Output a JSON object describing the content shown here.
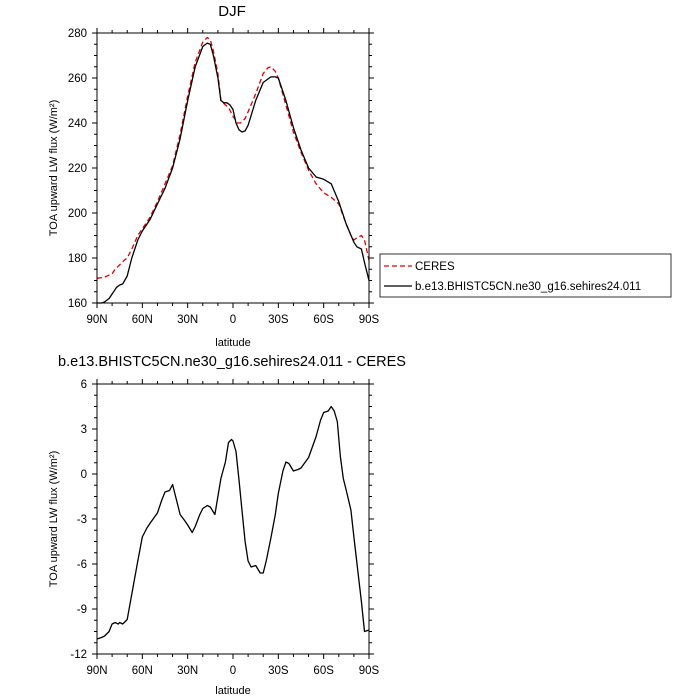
{
  "chart_data": [
    {
      "type": "line",
      "title": "DJF",
      "xlabel": "latitude",
      "ylabel": "TOA upward LW flux (W/m²)",
      "xlim": [
        90,
        -90
      ],
      "ylim": [
        160,
        280
      ],
      "x_ticks": [
        90,
        60,
        30,
        0,
        -30,
        -60,
        -90
      ],
      "x_tick_labels": [
        "90N",
        "60N",
        "30N",
        "0",
        "30S",
        "60S",
        "90S"
      ],
      "y_ticks": [
        160,
        180,
        200,
        220,
        240,
        260,
        280
      ],
      "y_tick_labels": [
        "160",
        "180",
        "200",
        "220",
        "240",
        "260",
        "280"
      ],
      "legend": {
        "placement": "outside-right"
      },
      "series": [
        {
          "name": "CERES",
          "color": "#e00000",
          "style": "dashed",
          "x": [
            90,
            85,
            80,
            78,
            75,
            72,
            70,
            67,
            63,
            60,
            55,
            50,
            45,
            40,
            35,
            30,
            25,
            20,
            17,
            15,
            13,
            10,
            8,
            5,
            3,
            0,
            -3,
            -5,
            -8,
            -10,
            -15,
            -20,
            -23,
            -25,
            -28,
            -30,
            -35,
            -40,
            -45,
            -50,
            -55,
            -60,
            -65,
            -70,
            -75,
            -78,
            -80,
            -82,
            -85,
            -87,
            -90
          ],
          "y": [
            171,
            171.5,
            173,
            175,
            177,
            179,
            180,
            184,
            190,
            193,
            198,
            205,
            213,
            221,
            235,
            252,
            267,
            276,
            278,
            277,
            272,
            262,
            250,
            248,
            247,
            243,
            240,
            240,
            242,
            245,
            253,
            262,
            264.5,
            265,
            263,
            260,
            248,
            236,
            227,
            219,
            213,
            209,
            207,
            204,
            195,
            190,
            188,
            189,
            190,
            188,
            179
          ]
        },
        {
          "name": "b.e13.BHISTC5CN.ne30_g16.sehires24.011",
          "color": "#000000",
          "style": "solid",
          "x": [
            90,
            87,
            85,
            82,
            80,
            77,
            75,
            73,
            70,
            67,
            63,
            60,
            55,
            50,
            45,
            40,
            35,
            30,
            25,
            20,
            17,
            15,
            13,
            10,
            8,
            6,
            4,
            2,
            0,
            -2,
            -4,
            -6,
            -8,
            -10,
            -15,
            -20,
            -25,
            -28,
            -30,
            -35,
            -40,
            -45,
            -50,
            -55,
            -60,
            -65,
            -70,
            -75,
            -80,
            -82,
            -85,
            -87,
            -90
          ],
          "y": [
            160,
            160,
            160.5,
            162,
            164,
            167,
            168,
            168.5,
            172,
            180,
            188,
            192,
            197,
            204,
            211,
            220,
            233,
            250,
            265,
            274,
            275.5,
            275,
            270,
            260,
            250,
            249,
            249,
            248,
            246,
            240,
            237,
            236,
            236.5,
            239,
            250,
            258,
            260.5,
            260.5,
            260,
            250,
            238,
            228,
            220,
            216,
            215,
            213,
            205,
            195,
            187,
            185,
            184,
            178,
            170
          ]
        }
      ]
    },
    {
      "type": "line",
      "title": "b.e13.BHISTC5CN.ne30_g16.sehires24.011 - CERES",
      "xlabel": "latitude",
      "ylabel": "TOA upward LW flux (W/m²)",
      "xlim": [
        90,
        -90
      ],
      "ylim": [
        -12,
        6
      ],
      "x_ticks": [
        90,
        60,
        30,
        0,
        -30,
        -60,
        -90
      ],
      "x_tick_labels": [
        "90N",
        "60N",
        "30N",
        "0",
        "30S",
        "60S",
        "90S"
      ],
      "y_ticks": [
        -12,
        -9,
        -6,
        -3,
        0,
        3,
        6
      ],
      "y_tick_labels": [
        "-12",
        "-9",
        "-6",
        "-3",
        "0",
        "3",
        "6"
      ],
      "series": [
        {
          "color": "#000000",
          "style": "solid",
          "x": [
            90,
            87,
            85,
            83,
            82,
            80,
            78,
            76,
            75,
            73,
            70,
            67,
            63,
            60,
            57,
            55,
            50,
            47,
            45,
            42,
            40,
            38,
            35,
            32,
            30,
            27,
            25,
            22,
            20,
            17,
            15,
            12,
            10,
            8,
            5,
            3,
            1,
            0,
            -2,
            -4,
            -6,
            -8,
            -10,
            -12,
            -15,
            -18,
            -20,
            -22,
            -25,
            -28,
            -30,
            -33,
            -35,
            -37,
            -40,
            -43,
            -45,
            -50,
            -55,
            -58,
            -60,
            -63,
            -65,
            -67,
            -69,
            -71,
            -73,
            -75,
            -78,
            -80,
            -83,
            -85,
            -87,
            -90
          ],
          "y": [
            -11,
            -10.9,
            -10.8,
            -10.6,
            -10.5,
            -10,
            -9.9,
            -10,
            -9.9,
            -10,
            -9.7,
            -8,
            -5.8,
            -4.2,
            -3.6,
            -3.3,
            -2.6,
            -1.7,
            -1.2,
            -1.1,
            -0.7,
            -1.5,
            -2.7,
            -3.1,
            -3.4,
            -3.9,
            -3.5,
            -2.7,
            -2.3,
            -2.1,
            -2.2,
            -2.7,
            -1.5,
            -0.3,
            0.8,
            2.1,
            2.3,
            2.2,
            1.5,
            -0.4,
            -2.5,
            -4.5,
            -5.8,
            -6.2,
            -6.1,
            -6.6,
            -6.6,
            -5.8,
            -4.3,
            -2.7,
            -1.3,
            0.2,
            0.8,
            0.7,
            0.2,
            0.3,
            0.4,
            1.1,
            2.5,
            3.6,
            4.1,
            4.2,
            4.5,
            4.2,
            3.5,
            1.2,
            -0.3,
            -1.1,
            -2.4,
            -4.2,
            -6.8,
            -8.5,
            -10.5,
            -10.4
          ]
        }
      ]
    }
  ]
}
